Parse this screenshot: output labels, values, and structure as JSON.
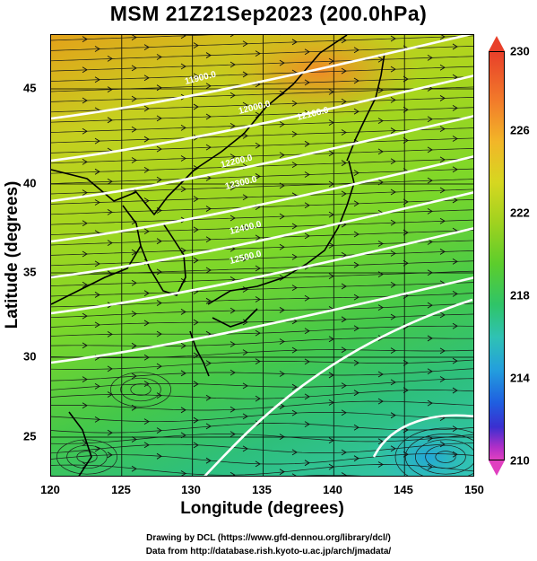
{
  "title": "MSM 21Z21Sep2023 (200.0hPa)",
  "map": {
    "xlabel": "Longitude (degrees)",
    "ylabel": "Latitude  (degrees)",
    "x_ticks": [
      "120",
      "125",
      "130",
      "135",
      "140",
      "145",
      "150"
    ],
    "y_ticks": [
      "25",
      "30",
      "35",
      "40",
      "45"
    ],
    "lon_range": [
      120,
      150
    ],
    "lat_range": [
      22.4,
      47.6
    ]
  },
  "colorbar": {
    "labels": [
      "230",
      "226",
      "222",
      "218",
      "214",
      "210"
    ],
    "range": [
      210,
      230
    ],
    "colors": [
      "#e040c0",
      "#3a2fd0",
      "#239fdd",
      "#2fc2b4",
      "#5ccd2c",
      "#d6d720",
      "#f27b2a",
      "#e8402a"
    ]
  },
  "contour_labels": [
    "11900.0",
    "12000.0",
    "12100.0",
    "12200.0",
    "12300.0",
    "12400.0",
    "12500.0"
  ],
  "credits": {
    "line1": "Drawing by DCL (https://www.gfd-dennou.org/library/dcl/)",
    "line2": "Data from http://database.rish.kyoto-u.ac.jp/arch/jmadata/"
  }
}
